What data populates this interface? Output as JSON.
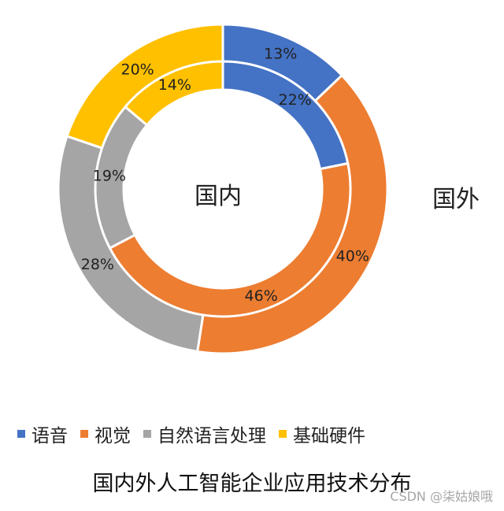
{
  "chart_data": {
    "type": "pie",
    "subtype": "nested-donut",
    "title": "国内外人工智能企业应用技术分布",
    "categories": [
      "语音",
      "视觉",
      "自然语言处理",
      "基础硬件"
    ],
    "colors": [
      "#4472C4",
      "#ED7D31",
      "#A5A5A5",
      "#FFC000"
    ],
    "series": [
      {
        "name": "国内",
        "ring": "inner",
        "values": [
          22,
          46,
          19,
          14
        ],
        "labels": [
          "22%",
          "46%",
          "19%",
          "14%"
        ]
      },
      {
        "name": "国外",
        "ring": "outer",
        "values": [
          13,
          40,
          28,
          20
        ],
        "labels": [
          "13%",
          "40%",
          "28%",
          "20%"
        ]
      }
    ],
    "legend_position": "bottom",
    "watermark": "CSDN @柒姑娘哦"
  }
}
